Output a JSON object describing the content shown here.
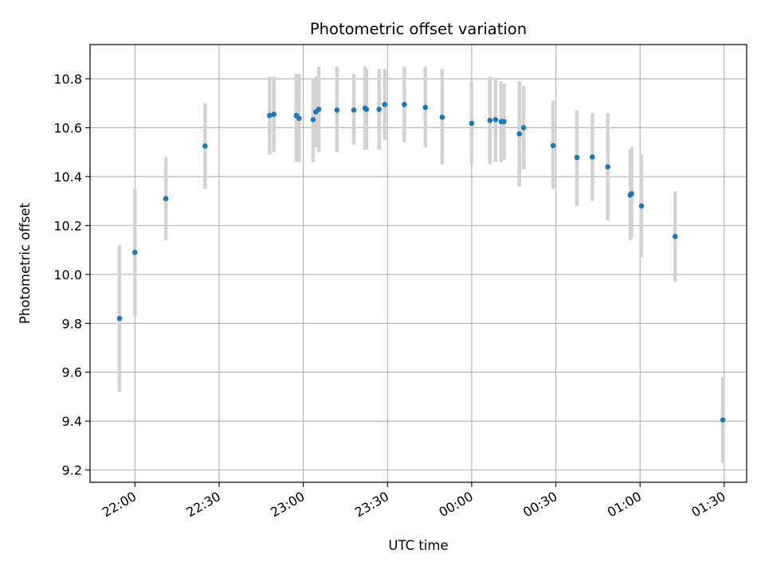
{
  "chart_data": {
    "type": "scatter",
    "title": "Photometric offset variation",
    "xlabel": "UTC time",
    "ylabel": "Photometric offset",
    "grid": true,
    "x_tick_labels": [
      "22:00",
      "22:30",
      "23:00",
      "23:30",
      "00:00",
      "00:30",
      "01:00",
      "01:30"
    ],
    "y_tick_labels": [
      "9.2",
      "9.4",
      "9.6",
      "9.8",
      "10.0",
      "10.2",
      "10.4",
      "10.6",
      "10.8"
    ],
    "y_ticks": [
      9.2,
      9.4,
      9.6,
      9.8,
      10.0,
      10.2,
      10.4,
      10.6,
      10.8
    ],
    "xlim": [
      "21:44",
      "01:38"
    ],
    "ylim": [
      9.15,
      10.94
    ],
    "marker_color": "#1f77b4",
    "errorbar_color": "#d3d3d3",
    "series": [
      {
        "points": [
          {
            "t": "21:54:30",
            "y": 9.82,
            "lo": 9.52,
            "hi": 10.12
          },
          {
            "t": "22:00:00",
            "y": 10.09,
            "lo": 9.83,
            "hi": 10.35
          },
          {
            "t": "22:11:00",
            "y": 10.31,
            "lo": 10.14,
            "hi": 10.48
          },
          {
            "t": "22:25:00",
            "y": 10.525,
            "lo": 10.35,
            "hi": 10.7
          },
          {
            "t": "22:48:00",
            "y": 10.65,
            "lo": 10.49,
            "hi": 10.81
          },
          {
            "t": "22:49:30",
            "y": 10.655,
            "lo": 10.5,
            "hi": 10.81
          },
          {
            "t": "22:57:30",
            "y": 10.65,
            "lo": 10.46,
            "hi": 10.82
          },
          {
            "t": "22:58:30",
            "y": 10.638,
            "lo": 10.46,
            "hi": 10.82
          },
          {
            "t": "23:03:30",
            "y": 10.633,
            "lo": 10.46,
            "hi": 10.8
          },
          {
            "t": "23:04:30",
            "y": 10.665,
            "lo": 10.52,
            "hi": 10.81
          },
          {
            "t": "23:05:30",
            "y": 10.675,
            "lo": 10.5,
            "hi": 10.85
          },
          {
            "t": "23:12:00",
            "y": 10.672,
            "lo": 10.5,
            "hi": 10.85
          },
          {
            "t": "23:18:00",
            "y": 10.672,
            "lo": 10.53,
            "hi": 10.82
          },
          {
            "t": "23:22:00",
            "y": 10.68,
            "lo": 10.51,
            "hi": 10.85
          },
          {
            "t": "23:22:30",
            "y": 10.675,
            "lo": 10.51,
            "hi": 10.84
          },
          {
            "t": "23:27:00",
            "y": 10.675,
            "lo": 10.51,
            "hi": 10.84
          },
          {
            "t": "23:29:00",
            "y": 10.695,
            "lo": 10.55,
            "hi": 10.84
          },
          {
            "t": "23:36:00",
            "y": 10.695,
            "lo": 10.54,
            "hi": 10.85
          },
          {
            "t": "23:43:30",
            "y": 10.683,
            "lo": 10.52,
            "hi": 10.85
          },
          {
            "t": "23:49:30",
            "y": 10.643,
            "lo": 10.45,
            "hi": 10.84
          },
          {
            "t": "00:00:00",
            "y": 10.618,
            "lo": 10.45,
            "hi": 10.79
          },
          {
            "t": "00:06:30",
            "y": 10.63,
            "lo": 10.45,
            "hi": 10.81
          },
          {
            "t": "00:08:30",
            "y": 10.633,
            "lo": 10.46,
            "hi": 10.8
          },
          {
            "t": "00:10:30",
            "y": 10.625,
            "lo": 10.46,
            "hi": 10.79
          },
          {
            "t": "00:11:30",
            "y": 10.625,
            "lo": 10.47,
            "hi": 10.78
          },
          {
            "t": "00:17:00",
            "y": 10.575,
            "lo": 10.36,
            "hi": 10.79
          },
          {
            "t": "00:18:30",
            "y": 10.6,
            "lo": 10.43,
            "hi": 10.77
          },
          {
            "t": "00:29:00",
            "y": 10.527,
            "lo": 10.35,
            "hi": 10.71
          },
          {
            "t": "00:37:30",
            "y": 10.478,
            "lo": 10.28,
            "hi": 10.67
          },
          {
            "t": "00:43:00",
            "y": 10.48,
            "lo": 10.3,
            "hi": 10.66
          },
          {
            "t": "00:48:30",
            "y": 10.44,
            "lo": 10.22,
            "hi": 10.66
          },
          {
            "t": "00:56:30",
            "y": 10.325,
            "lo": 10.14,
            "hi": 10.51
          },
          {
            "t": "00:57:00",
            "y": 10.33,
            "lo": 10.15,
            "hi": 10.52
          },
          {
            "t": "01:00:30",
            "y": 10.28,
            "lo": 10.07,
            "hi": 10.49
          },
          {
            "t": "01:12:30",
            "y": 10.155,
            "lo": 9.97,
            "hi": 10.34
          },
          {
            "t": "01:29:30",
            "y": 9.405,
            "lo": 9.23,
            "hi": 9.58
          }
        ]
      }
    ]
  }
}
